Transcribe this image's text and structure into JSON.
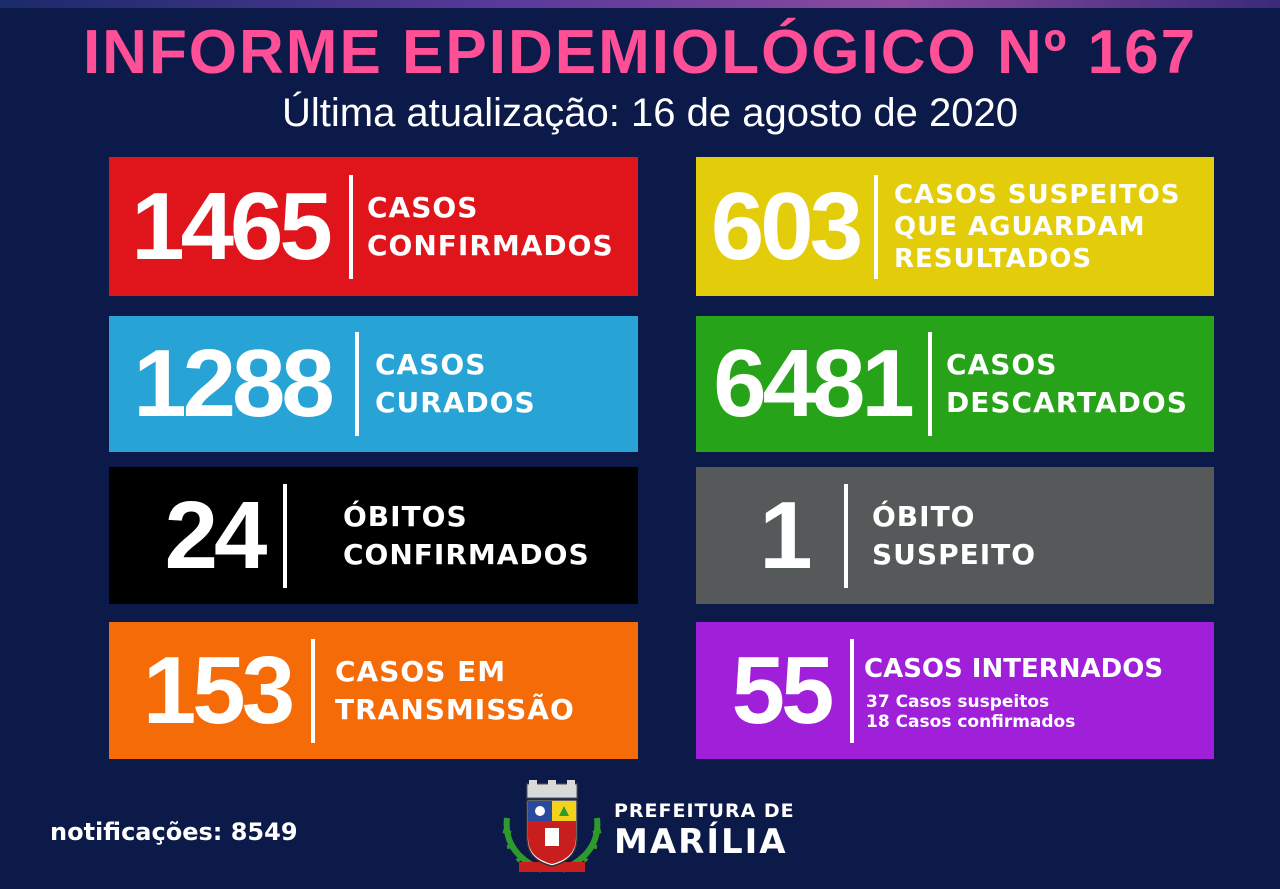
{
  "header": {
    "title": "INFORME EPIDEMIOLÓGICO Nº 167",
    "subtitle": "Última atualização: 16 de agosto de 2020"
  },
  "cards": [
    {
      "value": "1465",
      "lines": [
        "CASOS",
        "CONFIRMADOS"
      ],
      "color": "#e0151b"
    },
    {
      "value": "603",
      "lines": [
        "CASOS SUSPEITOS",
        "QUE AGUARDAM",
        "RESULTADOS"
      ],
      "color": "#e3cd0b"
    },
    {
      "value": "1288",
      "lines": [
        "CASOS",
        "CURADOS"
      ],
      "color": "#27a3d5"
    },
    {
      "value": "6481",
      "lines": [
        "CASOS",
        "DESCARTADOS"
      ],
      "color": "#26a318"
    },
    {
      "value": "24",
      "lines": [
        "ÓBITOS",
        "CONFIRMADOS"
      ],
      "color": "#000000"
    },
    {
      "value": "1",
      "lines": [
        "ÓBITO",
        "SUSPEITO"
      ],
      "color": "#56595a"
    },
    {
      "value": "153",
      "lines": [
        "CASOS EM",
        "TRANSMISSÃO"
      ],
      "color": "#f46b07"
    },
    {
      "value": "55",
      "lines": [
        "CASOS INTERNADOS"
      ],
      "details": [
        "37 Casos suspeitos",
        "18 Casos confirmados"
      ],
      "color": "#a01fd8"
    }
  ],
  "footer": {
    "notifications": "notificações: 8549",
    "brand_line1": "PREFEITURA DE",
    "brand_line2": "MARÍLIA",
    "crest_icon": "municipal-crest-icon"
  },
  "colors": {
    "background": "#0c1a4a",
    "title": "#ff4f97"
  }
}
